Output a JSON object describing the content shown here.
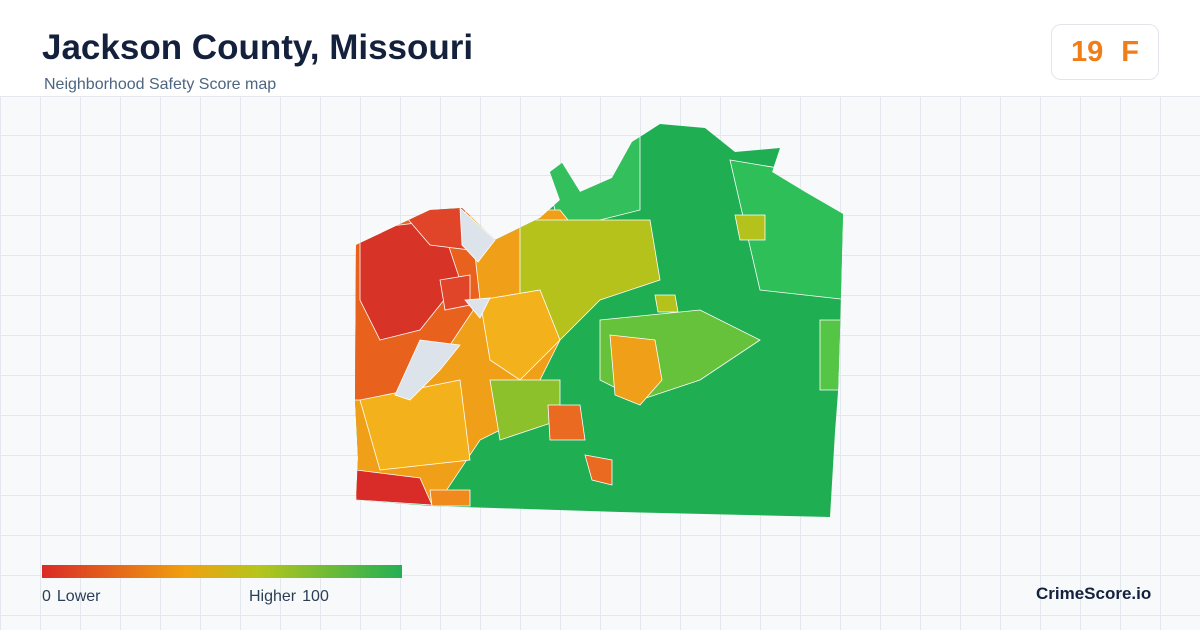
{
  "header": {
    "title": "Jackson County, Missouri",
    "subtitle": "Neighborhood Safety Score map"
  },
  "score": {
    "value": 19,
    "grade": "F"
  },
  "legend": {
    "min": 0,
    "min_label": "Lower",
    "max_label": "Higher",
    "max": 100
  },
  "brand": "CrimeScore.io"
}
